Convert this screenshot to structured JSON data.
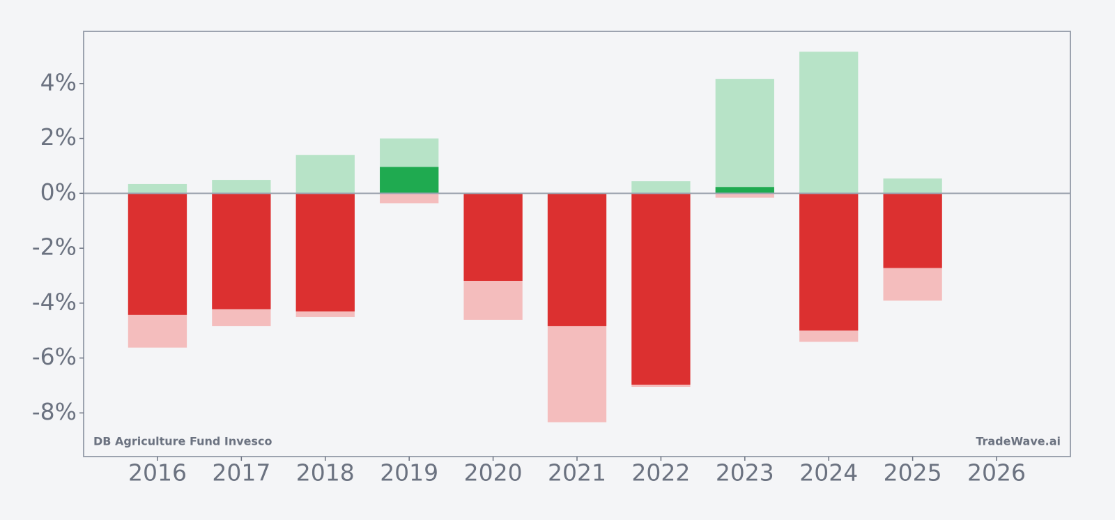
{
  "chart_data": {
    "type": "bar",
    "x": [
      2016,
      2017,
      2018,
      2019,
      2020,
      2021,
      2022,
      2023,
      2024,
      2025
    ],
    "series": [
      {
        "color": "#b7e3c7",
        "values": [
          0.34,
          0.49,
          1.4,
          2.0,
          null,
          null,
          0.44,
          4.17,
          5.16,
          0.54
        ]
      },
      {
        "color": "#f4bdbd",
        "values": [
          -5.62,
          -4.84,
          -4.51,
          -0.36,
          -4.61,
          -8.34,
          -7.05,
          -0.16,
          -5.41,
          -3.91
        ]
      },
      {
        "color": "#1faa50",
        "negative_color": "#dc3030",
        "values": [
          -4.43,
          -4.22,
          -4.3,
          0.96,
          -3.19,
          -4.84,
          -6.97,
          0.23,
          -5.0,
          -2.72
        ]
      }
    ],
    "xlim": [
      2015.12,
      2026.88
    ],
    "xticks": [
      2016,
      2017,
      2018,
      2019,
      2020,
      2021,
      2022,
      2023,
      2024,
      2025,
      2026
    ],
    "ylim": [
      -9.59,
      5.9
    ],
    "yticks": [
      {
        "value": 4,
        "label": "4%"
      },
      {
        "value": 2,
        "label": "2%"
      },
      {
        "value": 0,
        "label": "0%"
      },
      {
        "value": -2,
        "label": "-2%"
      },
      {
        "value": -4,
        "label": "-4%"
      },
      {
        "value": -6,
        "label": "-6%"
      },
      {
        "value": -8,
        "label": "-8%"
      }
    ],
    "annotations": [
      "DB Agriculture Fund Invesco",
      "TradeWave.ai"
    ]
  }
}
